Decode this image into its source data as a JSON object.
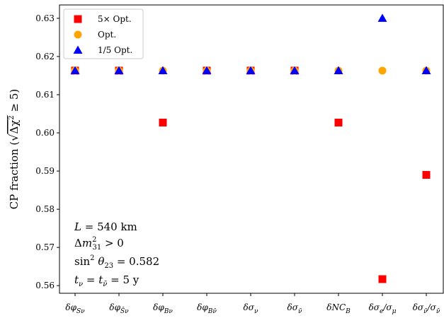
{
  "chart_data": {
    "type": "scatter",
    "xlabel": "",
    "ylabel": "CP fraction (√Δχ² ≥ 5)",
    "ylim": [
      0.558,
      0.6335
    ],
    "yticks": [
      0.56,
      0.57,
      0.58,
      0.59,
      0.6,
      0.61,
      0.62,
      0.63
    ],
    "ytick_labels": [
      "0.56",
      "0.57",
      "0.58",
      "0.59",
      "0.60",
      "0.61",
      "0.62",
      "0.63"
    ],
    "categories": [
      "δφSν",
      "δφS̄ν",
      "δφBν",
      "δφB̄ν",
      "δσν",
      "δσν̄",
      "δNCB",
      "δσe/σμ",
      "δσν̄/σν̄"
    ],
    "series": [
      {
        "name": "5× Opt.",
        "marker": "square",
        "color": "#ff0000",
        "values": [
          0.6163,
          0.6163,
          0.6027,
          0.6163,
          0.6163,
          0.6163,
          0.6027,
          0.5617,
          0.589
        ]
      },
      {
        "name": "Opt.",
        "marker": "circle",
        "color": "#ffa500",
        "values": [
          0.6163,
          0.6163,
          0.6163,
          0.6163,
          0.6163,
          0.6163,
          0.6163,
          0.6163,
          0.6163
        ]
      },
      {
        "name": "1/5 Opt.",
        "marker": "triangle",
        "color": "#0000ff",
        "values": [
          0.6163,
          0.6163,
          0.6163,
          0.6163,
          0.6163,
          0.6163,
          0.6163,
          0.63,
          0.6163
        ]
      }
    ],
    "legend_position": "top-left",
    "grid": false,
    "annotations": [
      "L = 540 km",
      "Δm²31 > 0",
      "sin² θ23 = 0.582",
      "tν = tν̄ = 5 y"
    ]
  }
}
